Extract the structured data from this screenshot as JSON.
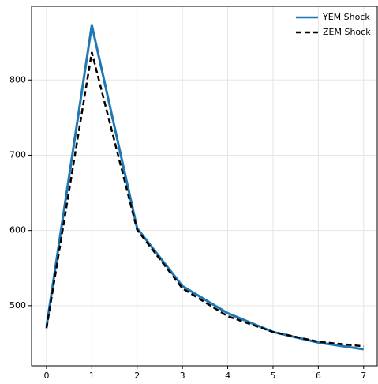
{
  "chart_data": {
    "type": "line",
    "x": [
      0,
      1,
      2,
      3,
      4,
      5,
      6,
      7
    ],
    "series": [
      {
        "name": "YEM Shock",
        "color": "#1f77b4",
        "values": [
          472,
          873,
          603,
          526,
          490,
          465,
          451,
          442
        ]
      },
      {
        "name": "ZEM Shock",
        "color": "#000000",
        "values": [
          470,
          837,
          601,
          523,
          486,
          465,
          452,
          446
        ]
      }
    ],
    "xlim": [
      -0.33,
      7.3
    ],
    "xticks": [
      0,
      1,
      2,
      3,
      4,
      5,
      6,
      7
    ],
    "ylim": [
      420,
      898
    ],
    "yticks": [
      500,
      600,
      700,
      800
    ],
    "grid": true,
    "legend": "upper-right"
  }
}
